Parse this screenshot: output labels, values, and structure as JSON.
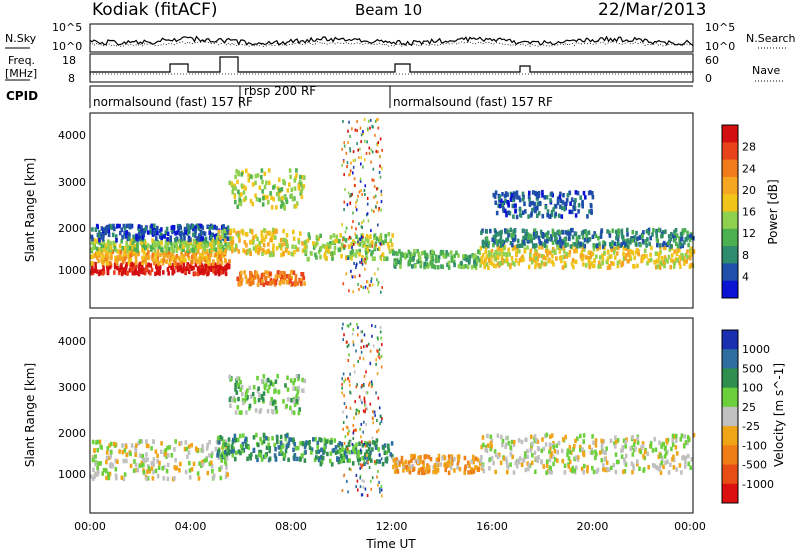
{
  "header": {
    "station": "Kodiak (fitACF)",
    "beam": "Beam 10",
    "date": "22/Mar/2013"
  },
  "strip_labels": {
    "nsky": "N.Sky",
    "nsearch": "N.Search",
    "freq_line1": "Freq.",
    "freq_line2": "[MHz]",
    "nave": "Nave",
    "cpid": "CPID"
  },
  "noise_ticks_left": [
    "10^5",
    "10^0"
  ],
  "noise_ticks_right": [
    "10^5",
    "10^0"
  ],
  "freq_ticks": [
    "18",
    "8"
  ],
  "nave_ticks": [
    "60",
    "0"
  ],
  "cpid_segments": [
    {
      "label": "normalsound (fast) 157 RF",
      "start": 0.0
    },
    {
      "label": "rbsp 200 RF",
      "start": 6.0
    },
    {
      "label": "normalsound (fast) 157 RF",
      "start": 12.0
    }
  ],
  "time_axis": {
    "label": "Time UT",
    "ticks": [
      "00:00",
      "04:00",
      "08:00",
      "12:00",
      "16:00",
      "20:00",
      "00:00"
    ]
  },
  "range_axis": {
    "label": "Slant Range [km]",
    "ticks": [
      "1000",
      "2000",
      "3000",
      "4000"
    ]
  },
  "colorbars": {
    "power": {
      "label": "Power [dB]",
      "ticks": [
        "4",
        "8",
        "12",
        "16",
        "20",
        "24",
        "28"
      ],
      "colors": [
        "#0a14d2",
        "#1f4fa8",
        "#2e8b6e",
        "#4caf50",
        "#8fd14f",
        "#f0c419",
        "#f5a623",
        "#f07b1a",
        "#e8431a",
        "#d40f0f"
      ]
    },
    "velocity": {
      "label": "Velocity [m s^-1]",
      "ticks": [
        "1000",
        "500",
        "100",
        "25",
        "-25",
        "-100",
        "-500",
        "-1000"
      ],
      "colors": [
        "#1a2fb0",
        "#2e6e9e",
        "#2f8f4e",
        "#6ccf3c",
        "#c0c0c0",
        "#f0a418",
        "#ef7e14",
        "#e84d16",
        "#dc1010"
      ]
    }
  },
  "chart_data": [
    {
      "type": "heatmap",
      "name_panel": "power",
      "x_range_hours": [
        0,
        24
      ],
      "y_range_km": [
        0,
        4600
      ],
      "bands": [
        {
          "t0": 0.0,
          "t1": 5.5,
          "r0": 850,
          "r1": 1100,
          "level": 9
        },
        {
          "t0": 0.0,
          "t1": 5.5,
          "r0": 1100,
          "r1": 1400,
          "level": 6
        },
        {
          "t0": 0.0,
          "t1": 5.5,
          "r0": 1400,
          "r1": 1650,
          "level": 4
        },
        {
          "t0": 0.0,
          "t1": 5.5,
          "r0": 1650,
          "r1": 2000,
          "level": 1
        },
        {
          "t0": 5.0,
          "t1": 8.5,
          "r0": 1300,
          "r1": 1900,
          "level": 5
        },
        {
          "t0": 5.5,
          "t1": 8.5,
          "r0": 2400,
          "r1": 3300,
          "level": 4
        },
        {
          "t0": 5.8,
          "t1": 8.5,
          "r0": 600,
          "r1": 900,
          "level": 7
        },
        {
          "t0": 8.5,
          "t1": 12.0,
          "r0": 1200,
          "r1": 1800,
          "level": 4
        },
        {
          "t0": 12.0,
          "t1": 15.5,
          "r0": 1000,
          "r1": 1400,
          "level": 3
        },
        {
          "t0": 15.5,
          "t1": 24.0,
          "r0": 1000,
          "r1": 1500,
          "level": 5
        },
        {
          "t0": 15.5,
          "t1": 24.0,
          "r0": 1500,
          "r1": 1900,
          "level": 2
        },
        {
          "t0": 16.0,
          "t1": 20.0,
          "r0": 2200,
          "r1": 2800,
          "level": 1
        }
      ]
    },
    {
      "type": "heatmap",
      "name_panel": "velocity",
      "x_range_hours": [
        0,
        24
      ],
      "y_range_km": [
        0,
        4600
      ],
      "bands": [
        {
          "t0": 0.0,
          "t1": 5.5,
          "r0": 850,
          "r1": 1750,
          "level": 4
        },
        {
          "t0": 5.0,
          "t1": 8.5,
          "r0": 1300,
          "r1": 1900,
          "level": 2
        },
        {
          "t0": 5.5,
          "t1": 8.5,
          "r0": 2400,
          "r1": 3300,
          "level": 3
        },
        {
          "t0": 8.5,
          "t1": 12.0,
          "r0": 1200,
          "r1": 1800,
          "level": 2
        },
        {
          "t0": 12.0,
          "t1": 15.5,
          "r0": 1000,
          "r1": 1400,
          "level": 5
        },
        {
          "t0": 15.5,
          "t1": 24.0,
          "r0": 1000,
          "r1": 1900,
          "level": 4
        }
      ]
    }
  ]
}
